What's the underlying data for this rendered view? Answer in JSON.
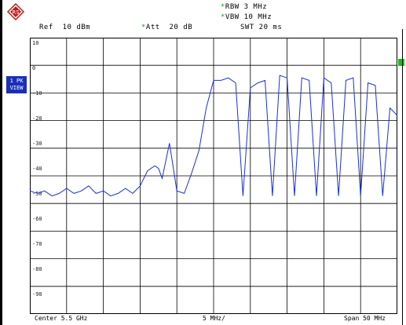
{
  "header": {
    "rbw": "RBW 3 MHz",
    "vbw": "VBW 10 MHz",
    "ref": "Ref  10 dBm",
    "att": "Att  20 dB",
    "swt": "SWT 20 ms",
    "star": "*"
  },
  "side": {
    "line1": "1 PK",
    "line2": "VIEW",
    "color": "#1a2fb8"
  },
  "plot": {
    "y_labels": [
      "10",
      "0",
      "-10",
      "-20",
      "-30",
      "-40",
      "-50",
      "-60",
      "-70",
      "-80",
      "-90"
    ],
    "trace_color": "#1a2fd8",
    "grid_color": "#000000"
  },
  "footer": {
    "center": "Center 5.5 GHz",
    "div": "5 MHz/",
    "span": "Span 50 MHz"
  },
  "chart_data": {
    "type": "line",
    "xlim": [
      0,
      50
    ],
    "ylim": [
      -100,
      10
    ],
    "grid": true,
    "points": [
      [
        0,
        -51
      ],
      [
        1,
        -52
      ],
      [
        2,
        -51
      ],
      [
        3,
        -53
      ],
      [
        4,
        -52
      ],
      [
        5,
        -50
      ],
      [
        6,
        -52
      ],
      [
        7,
        -51
      ],
      [
        8,
        -49
      ],
      [
        9,
        -52
      ],
      [
        10,
        -51
      ],
      [
        11,
        -53
      ],
      [
        12,
        -52
      ],
      [
        13,
        -50
      ],
      [
        14,
        -52
      ],
      [
        15,
        -49
      ],
      [
        16,
        -43
      ],
      [
        17,
        -41
      ],
      [
        17.5,
        -42
      ],
      [
        18,
        -46
      ],
      [
        19,
        -32
      ],
      [
        20,
        -51
      ],
      [
        21,
        -52
      ],
      [
        22,
        -44
      ],
      [
        23,
        -35
      ],
      [
        24,
        -18
      ],
      [
        25,
        -7
      ],
      [
        26,
        -7
      ],
      [
        27,
        -6
      ],
      [
        28,
        -8
      ],
      [
        29,
        -53
      ],
      [
        30,
        -10
      ],
      [
        31,
        -8
      ],
      [
        32,
        -7
      ],
      [
        33,
        -53
      ],
      [
        34,
        -5
      ],
      [
        35,
        -6
      ],
      [
        36,
        -53
      ],
      [
        37,
        -6
      ],
      [
        38,
        -7
      ],
      [
        39,
        -53
      ],
      [
        40,
        -6
      ],
      [
        41,
        -8
      ],
      [
        42,
        -53
      ],
      [
        43,
        -7
      ],
      [
        44,
        -6
      ],
      [
        45,
        -53
      ],
      [
        46,
        -8
      ],
      [
        47,
        -9
      ],
      [
        48,
        -53
      ],
      [
        49,
        -18
      ],
      [
        50,
        -21
      ]
    ]
  }
}
